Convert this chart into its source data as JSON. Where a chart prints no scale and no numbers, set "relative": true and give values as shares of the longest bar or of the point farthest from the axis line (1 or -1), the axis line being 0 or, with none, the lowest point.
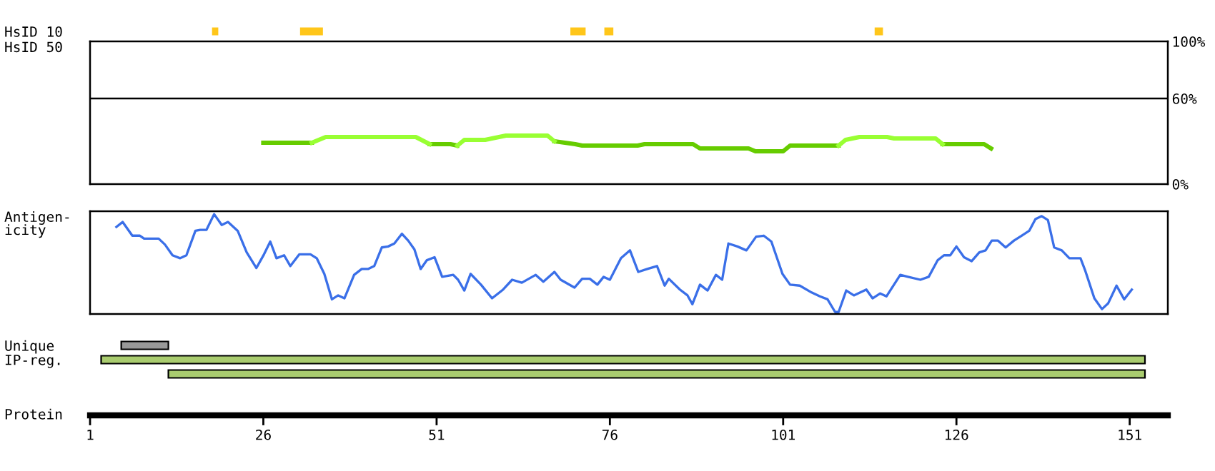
{
  "chart_data": [
    {
      "type": "bar",
      "orientation": "horizontal",
      "categories": [
        "HsID 10"
      ],
      "xlim": [
        1,
        156.5
      ],
      "tick_labels": "y",
      "series": [
        {
          "color": "#ffc61a",
          "values": [
            0.9
          ],
          "base": [
            18.6
          ]
        },
        {
          "color": "#ffc61a",
          "values": [
            3.3
          ],
          "base": [
            31.3
          ]
        },
        {
          "color": "#ffc61a",
          "values": [
            2.2
          ],
          "base": [
            70.3
          ]
        },
        {
          "color": "#ffc61a",
          "values": [
            1.3
          ],
          "base": [
            75.2
          ]
        },
        {
          "color": "#ffc61a",
          "values": [
            1.2
          ],
          "base": [
            114.2
          ]
        }
      ]
    },
    {
      "type": "line",
      "title": "HsID 50",
      "xlim": [
        1,
        156.5
      ],
      "y2lim": [
        0,
        100
      ],
      "tick_labels": "y",
      "y2ticks": [
        {
          "value": 0,
          "label": "0%"
        },
        {
          "value": 60,
          "label": "60%"
        },
        {
          "value": 100,
          "label": "100%"
        }
      ],
      "ref_lines": [
        {
          "axis": "y2",
          "value": 60,
          "color": "#000000"
        }
      ],
      "x": [
        26,
        33,
        35,
        48,
        50,
        53,
        54,
        55,
        58,
        59,
        61,
        67,
        68,
        71,
        72,
        80,
        81,
        88,
        89,
        96,
        97,
        101,
        102,
        109,
        110,
        112,
        116,
        117,
        123,
        124,
        130,
        131
      ],
      "series": [
        {
          "axis": "y2",
          "color": "#66cc00",
          "values": [
            29,
            29,
            null,
            null,
            28,
            28,
            27,
            null,
            null,
            null,
            null,
            null,
            30,
            28,
            27,
            27,
            28,
            28,
            25,
            25,
            23,
            23,
            27,
            27,
            null,
            null,
            null,
            null,
            null,
            28,
            28,
            25
          ]
        },
        {
          "axis": "y2",
          "color": "#99ff33",
          "values": [
            null,
            29,
            33,
            33,
            28,
            null,
            27,
            31,
            31,
            32,
            34,
            34,
            30,
            null,
            null,
            null,
            null,
            null,
            null,
            null,
            null,
            null,
            null,
            27,
            31,
            33,
            33,
            32,
            32,
            28,
            null,
            null
          ]
        }
      ]
    },
    {
      "type": "line",
      "title": "Antigen-\nicity",
      "xlim": [
        1,
        156.5
      ],
      "relative": true,
      "tick_labels": false,
      "series": [
        {
          "color": "#3a6fe8",
          "x": [
            4.8,
            5.7,
            7.1,
            8.2,
            8.8,
            10.9,
            11.8,
            12.9,
            14.0,
            14.9,
            16.2,
            16.9,
            17.8,
            18.9,
            20.0,
            20.9,
            22.3,
            23.6,
            25.0,
            26.1,
            27.0,
            27.9,
            29.0,
            29.9,
            31.2,
            32.8,
            33.7,
            34.8,
            35.9,
            36.8,
            37.7,
            39.1,
            40.2,
            41.1,
            42.0,
            43.1,
            44.0,
            44.9,
            46.0,
            46.9,
            47.8,
            48.7,
            49.6,
            50.7,
            51.8,
            53.4,
            54.1,
            55.0,
            55.9,
            57.4,
            59.0,
            60.6,
            61.9,
            63.3,
            65.3,
            66.4,
            68.0,
            68.9,
            70.9,
            72.0,
            73.1,
            74.2,
            75.1,
            76.0,
            77.6,
            78.9,
            80.1,
            81.4,
            82.8,
            83.9,
            84.5,
            86.1,
            87.2,
            87.9,
            89.0,
            90.1,
            91.3,
            92.2,
            93.1,
            94.4,
            95.7,
            97.1,
            98.2,
            99.3,
            100.9,
            102.0,
            103.4,
            105.1,
            106.3,
            107.4,
            108.5,
            109.0,
            110.1,
            111.2,
            113.0,
            113.9,
            115.0,
            115.9,
            117.9,
            119.0,
            120.8,
            122.0,
            123.3,
            124.2,
            125.1,
            126.0,
            127.1,
            128.2,
            129.3,
            130.2,
            131.1,
            132.0,
            133.1,
            134.3,
            135.4,
            136.5,
            137.4,
            138.3,
            139.2,
            140.1,
            141.2,
            142.3,
            143.9,
            144.6,
            145.9,
            147.0,
            147.9,
            149.1,
            150.2,
            151.3
          ],
          "values": [
            0.87,
            0.92,
            0.78,
            0.78,
            0.75,
            0.75,
            0.69,
            0.58,
            0.55,
            0.58,
            0.83,
            0.84,
            0.84,
            1.0,
            0.89,
            0.92,
            0.83,
            0.61,
            0.45,
            0.59,
            0.72,
            0.55,
            0.58,
            0.47,
            0.59,
            0.59,
            0.55,
            0.39,
            0.13,
            0.17,
            0.14,
            0.38,
            0.44,
            0.44,
            0.47,
            0.66,
            0.67,
            0.7,
            0.8,
            0.73,
            0.64,
            0.44,
            0.53,
            0.56,
            0.36,
            0.38,
            0.33,
            0.22,
            0.39,
            0.28,
            0.14,
            0.23,
            0.33,
            0.3,
            0.38,
            0.31,
            0.41,
            0.33,
            0.25,
            0.34,
            0.34,
            0.28,
            0.36,
            0.33,
            0.55,
            0.63,
            0.41,
            0.44,
            0.47,
            0.27,
            0.34,
            0.23,
            0.17,
            0.08,
            0.28,
            0.22,
            0.38,
            0.33,
            0.7,
            0.67,
            0.63,
            0.77,
            0.78,
            0.72,
            0.39,
            0.28,
            0.27,
            0.2,
            0.16,
            0.13,
            0,
            0,
            0.22,
            0.17,
            0.23,
            0.14,
            0.19,
            0.16,
            0.38,
            0.36,
            0.33,
            0.36,
            0.53,
            0.58,
            0.58,
            0.67,
            0.56,
            0.52,
            0.61,
            0.63,
            0.73,
            0.73,
            0.66,
            0.73,
            0.78,
            0.83,
            0.95,
            0.98,
            0.94,
            0.66,
            0.63,
            0.55,
            0.55,
            0.42,
            0.14,
            0.03,
            0.09,
            0.27,
            0.13,
            0.23
          ]
        }
      ]
    },
    {
      "type": "bar",
      "orientation": "horizontal",
      "categories": [
        "Unique",
        "IP-reg.",
        null
      ],
      "xlabel": "Protein",
      "xlim": [
        1,
        156.5
      ],
      "xticks": [
        1,
        26,
        51,
        76,
        101,
        126,
        151
      ],
      "values": [
        6.8,
        150.6,
        140.9
      ],
      "base": [
        5.5,
        2.6,
        12.3
      ],
      "colors": [
        "#999999",
        "#a9cc6f",
        "#a9cc6f"
      ]
    }
  ]
}
